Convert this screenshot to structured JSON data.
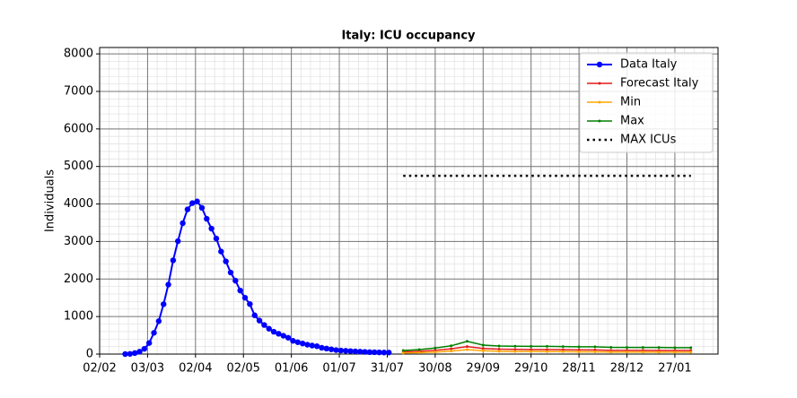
{
  "chart_data": {
    "type": "line",
    "title": "Italy: ICU occupancy",
    "ylabel": "Individuals",
    "xlim": [
      0,
      387
    ],
    "ylim": [
      0,
      8170
    ],
    "xticks": [
      {
        "value": 0,
        "label": "02/02"
      },
      {
        "value": 30,
        "label": "03/03"
      },
      {
        "value": 60,
        "label": "02/04"
      },
      {
        "value": 90,
        "label": "02/05"
      },
      {
        "value": 120,
        "label": "01/06"
      },
      {
        "value": 150,
        "label": "01/07"
      },
      {
        "value": 180,
        "label": "31/07"
      },
      {
        "value": 210,
        "label": "30/08"
      },
      {
        "value": 240,
        "label": "29/09"
      },
      {
        "value": 270,
        "label": "29/10"
      },
      {
        "value": 300,
        "label": "28/11"
      },
      {
        "value": 330,
        "label": "28/12"
      },
      {
        "value": 360,
        "label": "27/01"
      }
    ],
    "yticks": [
      0,
      1000,
      2000,
      3000,
      4000,
      5000,
      6000,
      7000,
      8000
    ],
    "grid": true,
    "minor_grid": true,
    "legend": "upper right",
    "series": [
      {
        "name": "Data Italy",
        "color": "#0000ff",
        "marker": "o",
        "linestyle": "solid",
        "x": [
          16,
          19,
          22,
          25,
          28,
          31,
          34,
          37,
          40,
          43,
          46,
          49,
          52,
          55,
          58,
          61,
          64,
          67,
          70,
          73,
          76,
          79,
          82,
          85,
          88,
          91,
          94,
          97,
          100,
          103,
          106,
          109,
          112,
          115,
          118,
          121,
          124,
          127,
          130,
          133,
          136,
          139,
          142,
          145,
          148,
          151,
          154,
          157,
          160,
          163,
          166,
          169,
          172,
          175,
          178,
          181
        ],
        "values": [
          0,
          5,
          27,
          64,
          140,
          295,
          567,
          877,
          1328,
          1851,
          2498,
          3009,
          3489,
          3856,
          4023,
          4068,
          3898,
          3605,
          3343,
          3079,
          2733,
          2471,
          2173,
          1956,
          1694,
          1501,
          1333,
          1034,
          893,
          775,
          676,
          595,
          541,
          489,
          435,
          353,
          316,
          283,
          250,
          227,
          209,
          168,
          148,
          127,
          107,
          94,
          87,
          79,
          72,
          65,
          58,
          51,
          49,
          45,
          42,
          41
        ]
      },
      {
        "name": "Forecast Italy",
        "color": "#e41a1c",
        "marker": ".",
        "linestyle": "solid",
        "x": [
          190,
          200,
          210,
          220,
          230,
          240,
          250,
          260,
          270,
          280,
          290,
          300,
          310,
          320,
          330,
          340,
          350,
          360,
          370
        ],
        "values": [
          60,
          75,
          100,
          140,
          200,
          150,
          130,
          125,
          120,
          120,
          115,
          110,
          110,
          100,
          100,
          100,
          95,
          95,
          95
        ]
      },
      {
        "name": "Min",
        "color": "#ffa500",
        "marker": ".",
        "linestyle": "solid",
        "x": [
          190,
          200,
          210,
          220,
          230,
          240,
          250,
          260,
          270,
          280,
          290,
          300,
          310,
          320,
          330,
          340,
          350,
          360,
          370
        ],
        "values": [
          30,
          40,
          55,
          80,
          120,
          90,
          75,
          70,
          70,
          65,
          65,
          60,
          60,
          55,
          55,
          55,
          50,
          50,
          50
        ]
      },
      {
        "name": "Max",
        "color": "#008000",
        "marker": ".",
        "linestyle": "solid",
        "x": [
          190,
          200,
          210,
          220,
          230,
          240,
          250,
          260,
          270,
          280,
          290,
          300,
          310,
          320,
          330,
          340,
          350,
          360,
          370
        ],
        "values": [
          95,
          120,
          160,
          220,
          340,
          240,
          215,
          210,
          205,
          205,
          200,
          195,
          195,
          180,
          175,
          175,
          175,
          170,
          170
        ]
      },
      {
        "name": "MAX ICUs",
        "color": "#000000",
        "marker": "none",
        "linestyle": "dotted",
        "x": [
          190,
          370
        ],
        "values": [
          4750,
          4750
        ]
      }
    ]
  }
}
